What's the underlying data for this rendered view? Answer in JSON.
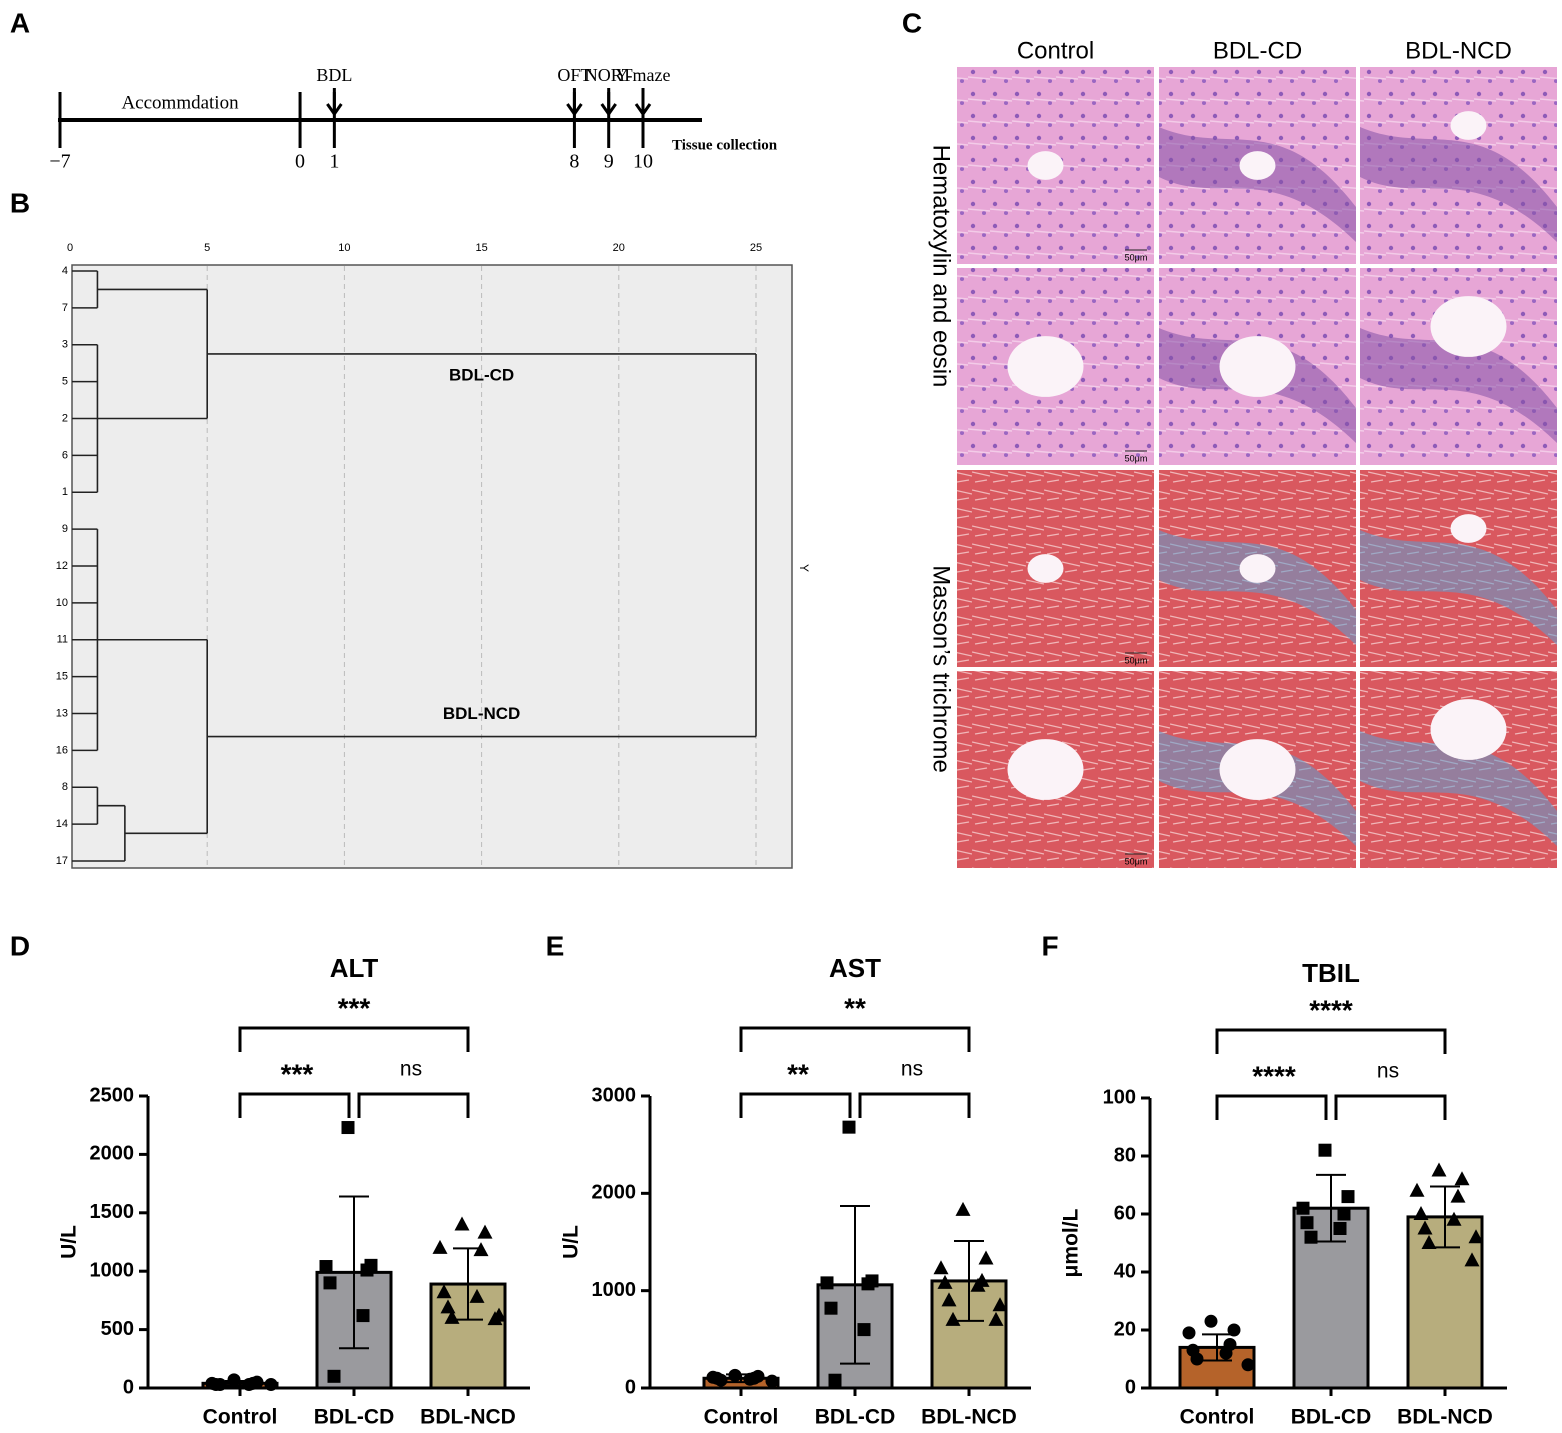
{
  "panel_labels": [
    "A",
    "B",
    "C",
    "D",
    "E",
    "F"
  ],
  "timeline": {
    "phase": "Accommdation",
    "ticks": [
      {
        "value": -7,
        "label": "−7"
      },
      0,
      1,
      8,
      9,
      10
    ],
    "events": [
      {
        "label": "BDL",
        "day": 1
      },
      {
        "label": "OFT",
        "day": 8
      },
      {
        "label": "NORT",
        "day": 9
      },
      {
        "label": "Y-maze",
        "day": 10
      }
    ],
    "end_label": "Tissue collection"
  },
  "dendrogram": {
    "xlim": [
      0,
      25
    ],
    "xticks": [
      0,
      5,
      10,
      15,
      20,
      25
    ],
    "side_label": "Y",
    "tree": {
      "height": 25,
      "children": [
        {
          "label": "BDL-CD",
          "height": 5,
          "children": [
            {
              "height": 1,
              "children": [
                4,
                7
              ]
            },
            {
              "height": 1,
              "children": [
                3,
                5,
                2,
                6,
                1
              ]
            }
          ]
        },
        {
          "label": "BDL-NCD",
          "height": 5,
          "children": [
            {
              "height": 1,
              "children": [
                9,
                12,
                10,
                11,
                15,
                13,
                16
              ]
            },
            {
              "height": 2,
              "children": [
                {
                  "height": 1,
                  "children": [
                    8,
                    14
                  ]
                },
                17
              ]
            }
          ]
        }
      ]
    }
  },
  "histology": {
    "columns": [
      "Control",
      "BDL-CD",
      "BDL-NCD"
    ],
    "stains": [
      "Hematoxylin and eosin",
      "Masson’s trichrome"
    ],
    "scale_bar": "50μm"
  },
  "chart_data": [
    {
      "type": "bar",
      "title": "ALT",
      "ylabel": "U/L",
      "categories": [
        "Control",
        "BDL-CD",
        "BDL-NCD"
      ],
      "colors": [
        "#b5632a",
        "#9a9a9e",
        "#b7ad7d"
      ],
      "markers": [
        "circle",
        "square",
        "triangle"
      ],
      "values": [
        40,
        990,
        890
      ],
      "errors": [
        20,
        650,
        305
      ],
      "points": [
        [
          70,
          50,
          40,
          40,
          30,
          30,
          30,
          30
        ],
        [
          2230,
          1050,
          1040,
          1010,
          900,
          620,
          100
        ],
        [
          1400,
          1330,
          1200,
          1180,
          820,
          780,
          690,
          620,
          600,
          590
        ]
      ],
      "ylim": [
        0,
        2500
      ],
      "yticks": [
        0,
        500,
        1000,
        1500,
        2000,
        2500
      ],
      "comparisons": [
        {
          "label": "***",
          "groups": [
            0,
            1
          ]
        },
        {
          "label": "ns",
          "groups": [
            1,
            2
          ]
        },
        {
          "label": "***",
          "groups": [
            0,
            2
          ]
        }
      ]
    },
    {
      "type": "bar",
      "title": "AST",
      "ylabel": "U/L",
      "categories": [
        "Control",
        "BDL-CD",
        "BDL-NCD"
      ],
      "colors": [
        "#b5632a",
        "#9a9a9e",
        "#b7ad7d"
      ],
      "markers": [
        "circle",
        "square",
        "triangle"
      ],
      "values": [
        100,
        1060,
        1100
      ],
      "errors": [
        40,
        810,
        410
      ],
      "points": [
        [
          130,
          120,
          110,
          100,
          100,
          90,
          80,
          70
        ],
        [
          2680,
          1100,
          1080,
          1070,
          820,
          600,
          80
        ],
        [
          1830,
          1330,
          1230,
          1100,
          1080,
          1050,
          900,
          850,
          700,
          700
        ]
      ],
      "ylim": [
        0,
        3000
      ],
      "yticks": [
        0,
        1000,
        2000,
        3000
      ],
      "comparisons": [
        {
          "label": "**",
          "groups": [
            0,
            1
          ]
        },
        {
          "label": "ns",
          "groups": [
            1,
            2
          ]
        },
        {
          "label": "**",
          "groups": [
            0,
            2
          ]
        }
      ]
    },
    {
      "type": "bar",
      "title": "TBIL",
      "ylabel": "μmol/L",
      "categories": [
        "Control",
        "BDL-CD",
        "BDL-NCD"
      ],
      "colors": [
        "#b5632a",
        "#9a9a9e",
        "#b7ad7d"
      ],
      "markers": [
        "circle",
        "square",
        "triangle"
      ],
      "values": [
        14,
        62,
        59
      ],
      "errors": [
        4.5,
        11.5,
        10.5
      ],
      "points": [
        [
          23,
          20,
          19,
          15,
          13,
          12,
          10,
          8
        ],
        [
          82,
          66,
          62,
          60,
          57,
          55,
          52
        ],
        [
          75,
          72,
          68,
          66,
          60,
          58,
          55,
          52,
          50,
          44
        ]
      ],
      "ylim": [
        0,
        100
      ],
      "yticks": [
        0,
        20,
        40,
        60,
        80,
        100
      ],
      "comparisons": [
        {
          "label": "****",
          "groups": [
            0,
            1
          ]
        },
        {
          "label": "ns",
          "groups": [
            1,
            2
          ]
        },
        {
          "label": "****",
          "groups": [
            0,
            2
          ]
        }
      ]
    }
  ]
}
